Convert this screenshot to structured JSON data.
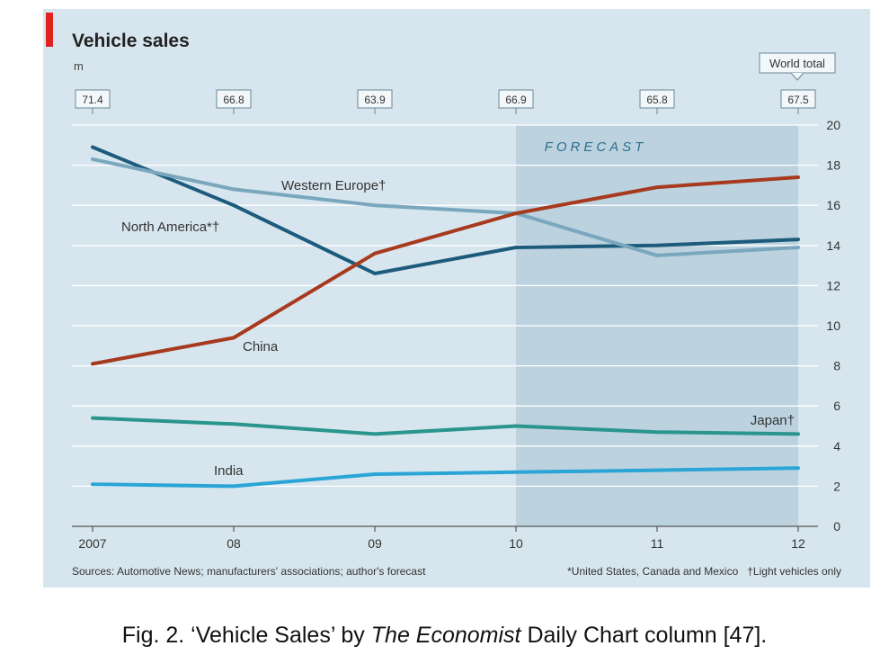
{
  "chart_data": {
    "type": "line",
    "title": "Vehicle sales",
    "unit_label": "m",
    "x": [
      "2007",
      "08",
      "09",
      "10",
      "11",
      "12"
    ],
    "ylim": [
      0,
      20
    ],
    "yticks": [
      0,
      2,
      4,
      6,
      8,
      10,
      12,
      14,
      16,
      18,
      20
    ],
    "forecast_label": "FORECAST",
    "forecast_start": "10",
    "world_total_label": "World total",
    "world_totals": [
      "71.4",
      "66.8",
      "63.9",
      "66.9",
      "65.8",
      "67.5"
    ],
    "series": [
      {
        "name": "North America*†",
        "color": "#1d5b7d",
        "values": [
          18.9,
          16.0,
          12.6,
          13.9,
          14.0,
          14.3
        ]
      },
      {
        "name": "Western Europe†",
        "color": "#7aa7bd",
        "values": [
          18.3,
          16.8,
          16.0,
          15.6,
          13.5,
          13.9
        ]
      },
      {
        "name": "China",
        "color": "#a73a1e",
        "values": [
          8.1,
          9.4,
          13.6,
          15.6,
          16.9,
          17.4
        ]
      },
      {
        "name": "Japan†",
        "color": "#2a958c",
        "values": [
          5.4,
          5.1,
          4.6,
          5.0,
          4.7,
          4.6
        ]
      },
      {
        "name": "India",
        "color": "#2aa5d6",
        "values": [
          2.1,
          2.0,
          2.6,
          2.7,
          2.8,
          2.9
        ]
      }
    ],
    "sources": "Sources: Automotive News; manufacturers' associations; author's forecast",
    "footnotes": "*United States, Canada and Mexico   †Light vehicles only"
  },
  "caption": {
    "prefix": "Fig. 2. ‘Vehicle Sales’ by ",
    "publication": "The Economist",
    "suffix": " Daily Chart column [47]."
  },
  "colors": {
    "panel_bg": "#d7e6ee",
    "forecast_bg": "#bcd2df",
    "accent": "#e3211f",
    "grid": "#ffffff"
  }
}
